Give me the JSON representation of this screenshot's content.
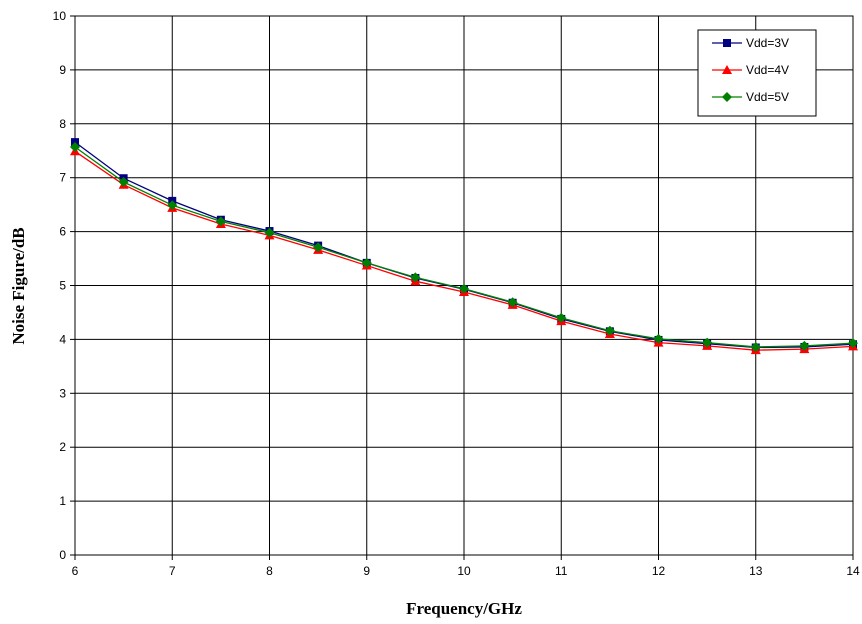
{
  "chart_data": {
    "type": "line",
    "title": "",
    "xlabel": "Frequency/GHz",
    "ylabel": "Noise Figure/dB",
    "xlim": [
      6,
      14
    ],
    "ylim": [
      0,
      10
    ],
    "xticks": [
      "6",
      "7",
      "8",
      "9",
      "10",
      "11",
      "12",
      "13",
      "14"
    ],
    "yticks": [
      "0",
      "1",
      "2",
      "3",
      "4",
      "5",
      "6",
      "7",
      "8",
      "9",
      "10"
    ],
    "grid": true,
    "legend_position": "top-right",
    "x": [
      6,
      6.5,
      7,
      7.5,
      8,
      8.5,
      9,
      9.5,
      10,
      10.5,
      11,
      11.5,
      12,
      12.5,
      13,
      13.5,
      14
    ],
    "series": [
      {
        "name": "Vdd=3V",
        "color": "#000080",
        "marker": "square",
        "values": [
          7.66,
          6.99,
          6.57,
          6.22,
          6.01,
          5.74,
          5.42,
          5.14,
          4.93,
          4.68,
          4.38,
          4.15,
          3.99,
          3.92,
          3.85,
          3.86,
          3.91
        ]
      },
      {
        "name": "Vdd=4V",
        "color": "#FF0000",
        "marker": "triangle",
        "values": [
          7.49,
          6.87,
          6.44,
          6.14,
          5.93,
          5.66,
          5.37,
          5.08,
          4.88,
          4.64,
          4.34,
          4.1,
          3.94,
          3.88,
          3.8,
          3.82,
          3.87
        ]
      },
      {
        "name": "Vdd=5V",
        "color": "#008000",
        "marker": "diamond",
        "values": [
          7.57,
          6.92,
          6.49,
          6.19,
          5.98,
          5.71,
          5.42,
          5.15,
          4.94,
          4.69,
          4.4,
          4.16,
          4.01,
          3.94,
          3.86,
          3.88,
          3.93
        ]
      }
    ]
  }
}
